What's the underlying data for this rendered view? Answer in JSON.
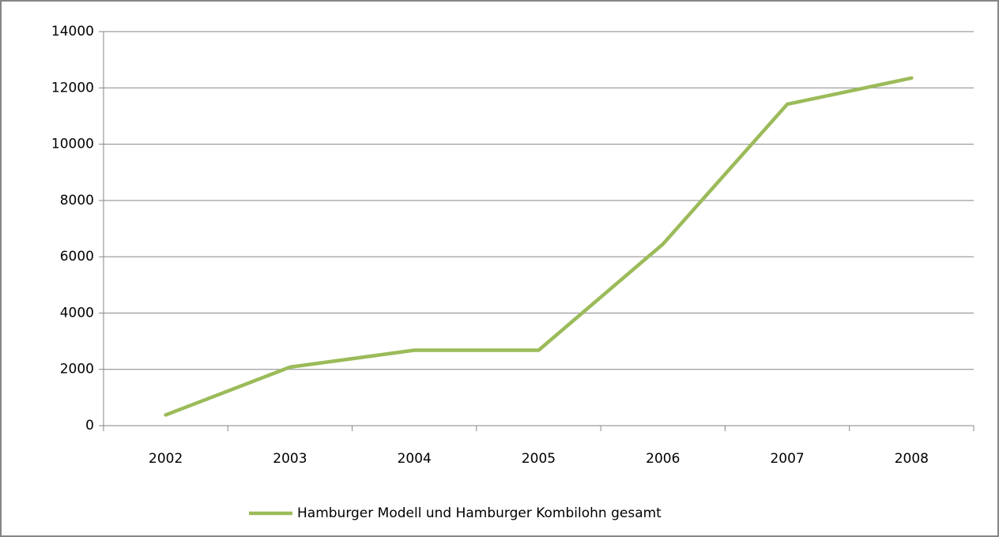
{
  "chart_data": {
    "type": "line",
    "categories": [
      "2002",
      "2003",
      "2004",
      "2005",
      "2006",
      "2007",
      "2008"
    ],
    "series": [
      {
        "name": "Hamburger Modell und Hamburger Kombilohn gesamt",
        "color": "#9bbb59",
        "values": [
          380,
          2080,
          2680,
          2680,
          6450,
          11420,
          12350
        ]
      }
    ],
    "ylim": [
      0,
      14000
    ],
    "yticks": [
      0,
      2000,
      4000,
      6000,
      8000,
      10000,
      12000,
      14000
    ],
    "grid": true,
    "legend": "bottom"
  }
}
